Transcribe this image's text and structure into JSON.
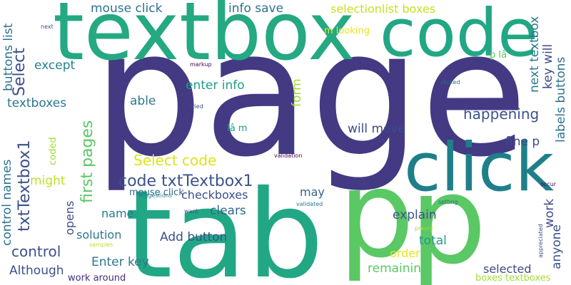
{
  "words": [
    {
      "key": "page",
      "text": "page",
      "color": "#433A83",
      "orient": "h"
    },
    {
      "key": "textbox",
      "text": "textbox",
      "color": "#24A982",
      "orient": "h"
    },
    {
      "key": "code",
      "text": "code",
      "color": "#22A785",
      "orient": "h"
    },
    {
      "key": "click",
      "text": "click",
      "color": "#1E7F89",
      "orient": "h"
    },
    {
      "key": "tab",
      "text": "tab",
      "color": "#22A785",
      "orient": "h"
    },
    {
      "key": "p1",
      "text": "p",
      "color": "#5AC864",
      "orient": "h"
    },
    {
      "key": "p2",
      "text": "p",
      "color": "#5AC864",
      "orient": "h"
    },
    {
      "key": "mouse_click_top",
      "text": "mouse click",
      "color": "#2C728E",
      "orient": "h"
    },
    {
      "key": "info_save",
      "text": "info save",
      "color": "#2C728E",
      "orient": "h"
    },
    {
      "key": "selectionlist_boxes",
      "text": "selectionlist boxes",
      "color": "#C8E020",
      "orient": "h"
    },
    {
      "key": "m_looking",
      "text": "m looking",
      "color": "#E8E419",
      "orient": "h"
    },
    {
      "key": "select_vertical",
      "text": "Select",
      "color": "#3D4D8A",
      "orient": "v"
    },
    {
      "key": "except",
      "text": "except",
      "color": "#26828E",
      "orient": "h"
    },
    {
      "key": "textboxes",
      "text": "textboxes",
      "color": "#2A788E",
      "orient": "h"
    },
    {
      "key": "txtTextbox1_vertical",
      "text": "txtTextbox1",
      "color": "#3B518B",
      "orient": "v"
    },
    {
      "key": "first_pages",
      "text": "first pages",
      "color": "#5AC864",
      "orient": "v"
    },
    {
      "key": "enter_info",
      "text": "enter info",
      "color": "#1F9E89",
      "orient": "h"
    },
    {
      "key": "able",
      "text": "able",
      "color": "#2A788E",
      "orient": "h"
    },
    {
      "key": "form",
      "text": "form",
      "color": "#A5DB36",
      "orient": "v"
    },
    {
      "key": "happening",
      "text": "happening",
      "color": "#3B518B",
      "orient": "h"
    },
    {
      "key": "next_textbox",
      "text": "next textbox",
      "color": "#2A788E",
      "orient": "v"
    },
    {
      "key": "key_will",
      "text": "key will",
      "color": "#3E4A89",
      "orient": "v"
    },
    {
      "key": "labels_buttons",
      "text": "labels buttons",
      "color": "#2C728E",
      "orient": "v"
    },
    {
      "key": "p_ia_top",
      "text": "p Iâ",
      "color": "#5AC864",
      "orient": "h"
    },
    {
      "key": "buttons_list",
      "text": "buttons list",
      "color": "#2C728E",
      "orient": "v"
    },
    {
      "key": "will_move",
      "text": "will move",
      "color": "#3E4A89",
      "orient": "h"
    },
    {
      "key": "ia_m",
      "text": "Iâ m",
      "color": "#1F9E89",
      "orient": "h"
    },
    {
      "key": "fine_p",
      "text": "fine p",
      "color": "#3E4A89",
      "orient": "h"
    },
    {
      "key": "select_code",
      "text": "Select code",
      "color": "#DDE318",
      "orient": "h"
    },
    {
      "key": "code_txttextbox1",
      "text": "code txtTextbox1",
      "color": "#3B528B",
      "orient": "h"
    },
    {
      "key": "coded",
      "text": "coded",
      "color": "#A5DB36",
      "orient": "v"
    },
    {
      "key": "might",
      "text": "might",
      "color": "#BDDF26",
      "orient": "h"
    },
    {
      "key": "checkboxes",
      "text": "checkboxes",
      "color": "#3B518B",
      "orient": "h"
    },
    {
      "key": "may",
      "text": "may",
      "color": "#31668E",
      "orient": "h"
    },
    {
      "key": "clears",
      "text": "clears",
      "color": "#31688E",
      "orient": "h"
    },
    {
      "key": "name",
      "text": "name",
      "color": "#2A788E",
      "orient": "h"
    },
    {
      "key": "explain",
      "text": "explain",
      "color": "#3B518B",
      "orient": "h"
    },
    {
      "key": "work",
      "text": "work",
      "color": "#3E4A89",
      "orient": "v"
    },
    {
      "key": "control_names",
      "text": "control names",
      "color": "#2C728E",
      "orient": "v"
    },
    {
      "key": "opens",
      "text": "opens",
      "color": "#3E4A89",
      "orient": "v"
    },
    {
      "key": "solution",
      "text": "solution",
      "color": "#2A788E",
      "orient": "h"
    },
    {
      "key": "add_button",
      "text": "Add button",
      "color": "#3B518B",
      "orient": "h"
    },
    {
      "key": "total",
      "text": "total",
      "color": "#1F9E89",
      "orient": "h"
    },
    {
      "key": "control",
      "text": "control",
      "color": "#3B518B",
      "orient": "h"
    },
    {
      "key": "order",
      "text": "order",
      "color": "#E8E419",
      "orient": "h"
    },
    {
      "key": "anyone",
      "text": "anyone",
      "color": "#3B518B",
      "orient": "v"
    },
    {
      "key": "enter_key",
      "text": "Enter key",
      "color": "#2A788E",
      "orient": "h"
    },
    {
      "key": "remaining",
      "text": "remaining",
      "color": "#5AC864",
      "orient": "h"
    },
    {
      "key": "selected",
      "text": "selected",
      "color": "#3E4A89",
      "orient": "h"
    },
    {
      "key": "although",
      "text": "Although",
      "color": "#3B518B",
      "orient": "h"
    },
    {
      "key": "mouse_click_bottom",
      "text": "mouse click",
      "color": "#31688E",
      "orient": "h"
    },
    {
      "key": "work_around",
      "text": "work around",
      "color": "#472D7B",
      "orient": "h"
    },
    {
      "key": "boxes_textboxes",
      "text": "boxes textboxes",
      "color": "#A5DB36",
      "orient": "h"
    },
    {
      "key": "next_small",
      "text": "next",
      "color": "#3B518B",
      "orient": "h"
    },
    {
      "key": "markup",
      "text": "markup",
      "color": "#440154",
      "orient": "h"
    },
    {
      "key": "tried",
      "text": "tried",
      "color": "#3B518B",
      "orient": "h"
    },
    {
      "key": "clicked",
      "text": "clicked",
      "color": "#2C728E",
      "orient": "h"
    },
    {
      "key": "validation",
      "text": "validation",
      "color": "#440154",
      "orient": "h"
    },
    {
      "key": "suggestions",
      "text": "suggestions",
      "color": "#26828E",
      "orient": "h"
    },
    {
      "key": "want",
      "text": "want",
      "color": "#3E4A89",
      "orient": "h"
    },
    {
      "key": "validated",
      "text": "validated",
      "color": "#2A788E",
      "orient": "h"
    },
    {
      "key": "setting",
      "text": "setting",
      "color": "#2C728E",
      "orient": "h"
    },
    {
      "key": "occur",
      "text": "occur",
      "color": "#440154",
      "orient": "h"
    },
    {
      "key": "prevnt",
      "text": "prevnt",
      "color": "#A5DB36",
      "orient": "h"
    },
    {
      "key": "samples",
      "text": "samples",
      "color": "#BDDF26",
      "orient": "h"
    },
    {
      "key": "appreciated",
      "text": "appreciated",
      "color": "#3E4A89",
      "orient": "v"
    }
  ]
}
